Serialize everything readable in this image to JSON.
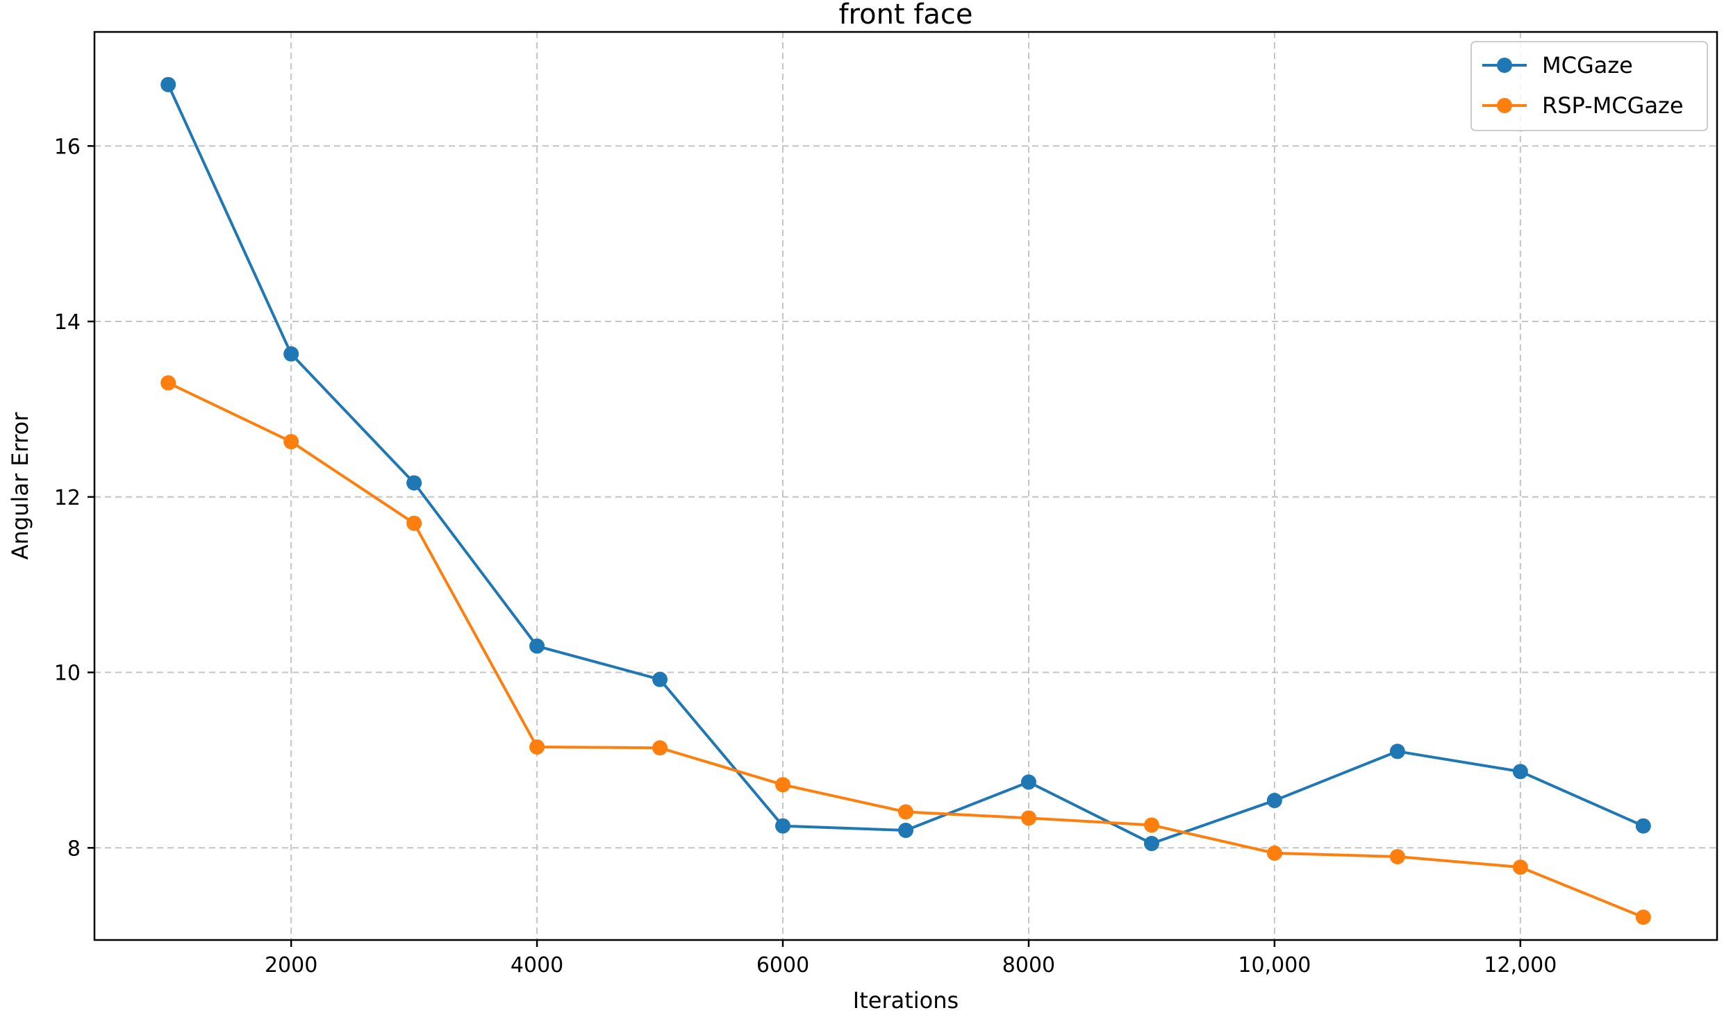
{
  "chart_data": {
    "type": "line",
    "title": "front face",
    "xlabel": "Iterations",
    "ylabel": "Angular Error",
    "xlim": [
      400,
      13600
    ],
    "ylim": [
      6.95,
      17.3
    ],
    "xticks": [
      2000,
      4000,
      6000,
      8000,
      10000,
      12000
    ],
    "xtick_labels": [
      "2000",
      "4000",
      "6000",
      "8000",
      "10,000",
      "12,000"
    ],
    "yticks": [
      8,
      10,
      12,
      14,
      16
    ],
    "ytick_labels": [
      "8",
      "10",
      "12",
      "14",
      "16"
    ],
    "grid": true,
    "legend_position": "top-right",
    "x": [
      1000,
      2000,
      3000,
      4000,
      5000,
      6000,
      7000,
      8000,
      9000,
      10000,
      11000,
      12000,
      13000
    ],
    "series": [
      {
        "name": "MCGaze",
        "color": "#1f77b4",
        "values": [
          16.7,
          13.63,
          12.16,
          10.3,
          9.92,
          8.25,
          8.2,
          8.75,
          8.05,
          8.54,
          9.1,
          8.87,
          8.25
        ]
      },
      {
        "name": "RSP-MCGaze",
        "color": "#ff7f0e",
        "values": [
          13.3,
          12.63,
          11.7,
          9.15,
          9.14,
          8.72,
          8.41,
          8.34,
          8.26,
          7.94,
          7.9,
          7.78,
          7.21
        ]
      }
    ]
  }
}
